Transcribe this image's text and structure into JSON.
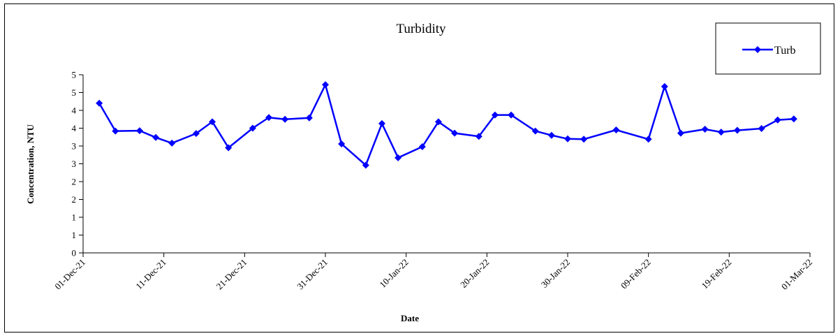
{
  "chart_data": {
    "type": "line",
    "title": "Turbidity",
    "xlabel": "Date",
    "ylabel": "Concentration, NTU",
    "ylim": [
      0,
      5
    ],
    "y_ticks": [
      0,
      0.5,
      1,
      1.5,
      2,
      2.5,
      3,
      3.5,
      4,
      4.5,
      5
    ],
    "y_tick_labels": [
      "0",
      "1",
      "1",
      "2",
      "2",
      "3",
      "3",
      "4",
      "4",
      "5",
      "5"
    ],
    "xlim": [
      "2021-12-01",
      "2022-03-01"
    ],
    "x_ticks": [
      "2021-12-01",
      "2021-12-11",
      "2021-12-21",
      "2021-12-31",
      "2022-01-10",
      "2022-01-20",
      "2022-01-30",
      "2022-02-09",
      "2022-02-19",
      "2022-03-01"
    ],
    "x_tick_labels": [
      "01-Dec-21",
      "11-Dec-21",
      "21-Dec-21",
      "31-Dec-21",
      "10-Jan-22",
      "20-Jan-22",
      "30-Jan-22",
      "09-Feb-22",
      "19-Feb-22",
      "01-Mar-22"
    ],
    "grid": false,
    "legend_position": "top-right",
    "series": [
      {
        "name": "Turb",
        "color": "#0000ff",
        "marker": "diamond",
        "x": [
          "2021-12-03",
          "2021-12-05",
          "2021-12-08",
          "2021-12-10",
          "2021-12-12",
          "2021-12-15",
          "2021-12-17",
          "2021-12-19",
          "2021-12-22",
          "2021-12-24",
          "2021-12-26",
          "2021-12-29",
          "2021-12-31",
          "2022-01-02",
          "2022-01-05",
          "2022-01-07",
          "2022-01-09",
          "2022-01-12",
          "2022-01-14",
          "2022-01-16",
          "2022-01-19",
          "2022-01-21",
          "2022-01-23",
          "2022-01-26",
          "2022-01-28",
          "2022-01-30",
          "2022-02-01",
          "2022-02-05",
          "2022-02-09",
          "2022-02-11",
          "2022-02-13",
          "2022-02-16",
          "2022-02-18",
          "2022-02-20",
          "2022-02-23",
          "2022-02-25",
          "2022-02-27"
        ],
        "y": [
          4.2,
          3.42,
          3.43,
          3.24,
          3.08,
          3.35,
          3.68,
          2.95,
          3.5,
          3.8,
          3.75,
          3.79,
          4.72,
          3.06,
          2.46,
          3.63,
          2.67,
          2.98,
          3.68,
          3.36,
          3.27,
          3.87,
          3.87,
          3.42,
          3.3,
          3.2,
          3.19,
          3.45,
          3.19,
          4.67,
          3.36,
          3.47,
          3.39,
          3.44,
          3.49,
          3.73,
          3.76
        ]
      }
    ]
  }
}
